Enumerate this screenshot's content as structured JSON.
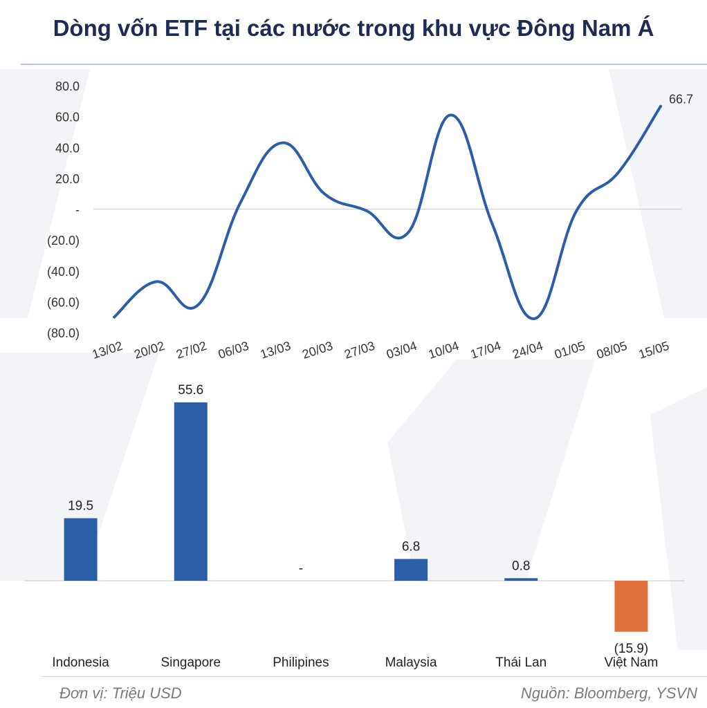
{
  "title": "Dòng vốn ETF tại các nước trong khu vực Đông Nam Á",
  "footer": {
    "unit_note": "Đơn vị: Triệu USD",
    "source_note": "Nguồn: Bloomberg, YSVN"
  },
  "chart_data": [
    {
      "type": "line",
      "categories": [
        "13/02",
        "20/02",
        "27/02",
        "06/03",
        "13/03",
        "20/03",
        "27/03",
        "03/04",
        "10/04",
        "17/04",
        "24/04",
        "01/05",
        "08/05",
        "15/05"
      ],
      "series": [
        {
          "values": [
            -70,
            -47,
            -62,
            4,
            43,
            10,
            -1,
            -15,
            61,
            -10,
            -71,
            -1,
            24,
            66.7
          ],
          "color": "#2a5ea8"
        }
      ],
      "end_label": "66.7",
      "ylim": [
        -80,
        80
      ],
      "yticks": [
        80,
        60,
        40,
        20,
        0,
        -20,
        -40,
        -60,
        -80
      ],
      "ytick_labels": [
        "80.0",
        "60.0",
        "40.0",
        "20.0",
        "-",
        "(20.0)",
        "(40.0)",
        "(60.0)",
        "(80.0)"
      ],
      "grid": false
    },
    {
      "type": "bar",
      "categories": [
        "Indonesia",
        "Singapore",
        "Philipines",
        "Malaysia",
        "Thái Lan",
        "Việt Nam"
      ],
      "values": [
        19.5,
        55.6,
        0,
        6.8,
        0.8,
        -15.9
      ],
      "data_labels": [
        "19.5",
        "55.6",
        "-",
        "6.8",
        "0.8",
        "(15.9)"
      ],
      "colors": [
        "#2a5ea8",
        "#2a5ea8",
        "#2a5ea8",
        "#2a5ea8",
        "#2a5ea8",
        "#e2703a"
      ]
    }
  ]
}
